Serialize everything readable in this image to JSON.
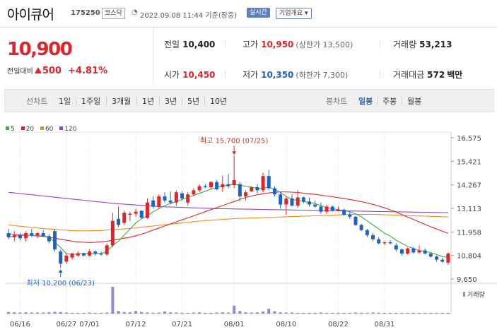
{
  "header": {
    "stock_name": "아이큐어",
    "stock_code": "175250",
    "market_tag": "코스닥",
    "datetime": "2022.09.08 11:44 기준(장중)",
    "realtime_button": "실시간",
    "corp_info_button": "기업개요 ▾"
  },
  "quote": {
    "price": "10,900",
    "change_label": "전일대비",
    "change": "500",
    "change_pct": "+4.81%"
  },
  "stats": {
    "prev_close_label": "전일",
    "prev_close": "10,400",
    "high_label": "고가",
    "high": "10,950",
    "upper_limit": "(상한가 13,500)",
    "volume_label": "거래량",
    "volume": "53,213",
    "open_label": "시가",
    "open": "10,450",
    "low_label": "저가",
    "low": "10,350",
    "lower_limit": "(하한가 7,300)",
    "amount_label": "거래대금",
    "amount": "572",
    "amount_unit": "백만"
  },
  "period_bar": {
    "line_chart_label": "선차트",
    "line_periods": [
      "1일",
      "1주일",
      "3개월",
      "1년",
      "3년",
      "5년",
      "10년"
    ],
    "candle_chart_label": "봉차트",
    "candle_periods": [
      "일봉",
      "주봉",
      "월봉"
    ],
    "selected_candle": "일봉"
  },
  "colors": {
    "up": "#e0242b",
    "down": "#1d63c6",
    "ma5": "#3cb043",
    "ma20": "#e0242b",
    "ma60": "#f08c1e",
    "ma120": "#8e44cf",
    "volume": "#9b86d4"
  },
  "chart_data": {
    "type": "candlestick",
    "x_tick_labels": [
      "06/16",
      "06/27",
      "07/01",
      "07/12",
      "07/21",
      "08/01",
      "08/10",
      "08/22",
      "08/31"
    ],
    "y_tick_labels": [
      "16,575",
      "15,421",
      "14,267",
      "13,113",
      "11,958",
      "10,804",
      "9,650"
    ],
    "ylim": [
      9650,
      16575
    ],
    "legend": [
      "5",
      "20",
      "60",
      "120"
    ],
    "high_annotation": "최고 15,700 (07/25)",
    "low_annotation": "최저 10,200 (06/23)",
    "volume_label": "거래량",
    "candles": [
      {
        "o": 11900,
        "h": 12100,
        "l": 11600,
        "c": 11700
      },
      {
        "o": 11700,
        "h": 12000,
        "l": 11500,
        "c": 11800
      },
      {
        "o": 11800,
        "h": 11900,
        "l": 11550,
        "c": 11650
      },
      {
        "o": 11650,
        "h": 12000,
        "l": 11500,
        "c": 11900
      },
      {
        "o": 11900,
        "h": 12100,
        "l": 11700,
        "c": 11800
      },
      {
        "o": 11800,
        "h": 11950,
        "l": 11650,
        "c": 11900
      },
      {
        "o": 11900,
        "h": 12050,
        "l": 11700,
        "c": 11750
      },
      {
        "o": 11750,
        "h": 11850,
        "l": 11400,
        "c": 11500
      },
      {
        "o": 12000,
        "h": 12100,
        "l": 11000,
        "c": 11100
      },
      {
        "o": 11000,
        "h": 11100,
        "l": 10200,
        "c": 10400
      },
      {
        "o": 10500,
        "h": 10900,
        "l": 10400,
        "c": 10800
      },
      {
        "o": 10700,
        "h": 10950,
        "l": 10600,
        "c": 10900
      },
      {
        "o": 10800,
        "h": 11000,
        "l": 10750,
        "c": 10900
      },
      {
        "o": 10900,
        "h": 10950,
        "l": 10750,
        "c": 10800
      },
      {
        "o": 10800,
        "h": 11100,
        "l": 10750,
        "c": 11000
      },
      {
        "o": 11000,
        "h": 11050,
        "l": 10800,
        "c": 10900
      },
      {
        "o": 10900,
        "h": 11000,
        "l": 10800,
        "c": 10850
      },
      {
        "o": 10850,
        "h": 11400,
        "l": 10800,
        "c": 11300
      },
      {
        "o": 11300,
        "h": 12900,
        "l": 11200,
        "c": 12500
      },
      {
        "o": 12600,
        "h": 13200,
        "l": 12200,
        "c": 12300
      },
      {
        "o": 12400,
        "h": 13000,
        "l": 12300,
        "c": 12900
      },
      {
        "o": 12800,
        "h": 12950,
        "l": 12500,
        "c": 12850
      },
      {
        "o": 12850,
        "h": 13100,
        "l": 12700,
        "c": 12950
      },
      {
        "o": 13000,
        "h": 13000,
        "l": 12600,
        "c": 12650
      },
      {
        "o": 12650,
        "h": 13600,
        "l": 12600,
        "c": 13400
      },
      {
        "o": 13500,
        "h": 13700,
        "l": 13100,
        "c": 13200
      },
      {
        "o": 13200,
        "h": 13800,
        "l": 13100,
        "c": 13700
      },
      {
        "o": 13700,
        "h": 13900,
        "l": 13400,
        "c": 13500
      },
      {
        "o": 13500,
        "h": 13950,
        "l": 13300,
        "c": 13400
      },
      {
        "o": 13400,
        "h": 14000,
        "l": 13250,
        "c": 13900
      },
      {
        "o": 13850,
        "h": 13950,
        "l": 13500,
        "c": 13600
      },
      {
        "o": 13400,
        "h": 13900,
        "l": 13250,
        "c": 13800
      },
      {
        "o": 13800,
        "h": 14100,
        "l": 13700,
        "c": 14000
      },
      {
        "o": 14000,
        "h": 14300,
        "l": 13900,
        "c": 14200
      },
      {
        "o": 14200,
        "h": 14300,
        "l": 14100,
        "c": 14150
      },
      {
        "o": 14150,
        "h": 14450,
        "l": 14050,
        "c": 14400
      },
      {
        "o": 14400,
        "h": 14500,
        "l": 14000,
        "c": 14050
      },
      {
        "o": 14150,
        "h": 14700,
        "l": 13900,
        "c": 14300
      },
      {
        "o": 14300,
        "h": 14800,
        "l": 14100,
        "c": 14200
      },
      {
        "o": 14250,
        "h": 15700,
        "l": 14100,
        "c": 14500
      },
      {
        "o": 14300,
        "h": 14400,
        "l": 13500,
        "c": 13700
      },
      {
        "o": 13700,
        "h": 14000,
        "l": 13500,
        "c": 13900
      },
      {
        "o": 13950,
        "h": 14200,
        "l": 13900,
        "c": 14150
      },
      {
        "o": 14150,
        "h": 14300,
        "l": 13850,
        "c": 14000
      },
      {
        "o": 14000,
        "h": 14850,
        "l": 13900,
        "c": 14700
      },
      {
        "o": 14700,
        "h": 15000,
        "l": 14000,
        "c": 14100
      },
      {
        "o": 14100,
        "h": 14200,
        "l": 13700,
        "c": 13800
      },
      {
        "o": 13800,
        "h": 13900,
        "l": 13100,
        "c": 13300
      },
      {
        "o": 13300,
        "h": 13700,
        "l": 12800,
        "c": 13600
      },
      {
        "o": 13600,
        "h": 13800,
        "l": 13200,
        "c": 13250
      },
      {
        "o": 13250,
        "h": 14000,
        "l": 13150,
        "c": 13650
      },
      {
        "o": 13650,
        "h": 13700,
        "l": 13350,
        "c": 13450
      },
      {
        "o": 13450,
        "h": 13650,
        "l": 13200,
        "c": 13300
      },
      {
        "o": 13300,
        "h": 13500,
        "l": 13150,
        "c": 13200
      },
      {
        "o": 13200,
        "h": 13400,
        "l": 12850,
        "c": 12950
      },
      {
        "o": 12950,
        "h": 13300,
        "l": 12850,
        "c": 13200
      },
      {
        "o": 13200,
        "h": 13250,
        "l": 12950,
        "c": 13000
      },
      {
        "o": 13000,
        "h": 13200,
        "l": 12950,
        "c": 13050
      },
      {
        "o": 13050,
        "h": 13100,
        "l": 12750,
        "c": 12800
      },
      {
        "o": 12800,
        "h": 12950,
        "l": 12600,
        "c": 12700
      },
      {
        "o": 12700,
        "h": 12750,
        "l": 12250,
        "c": 12300
      },
      {
        "o": 12300,
        "h": 12350,
        "l": 12000,
        "c": 12050
      },
      {
        "o": 12050,
        "h": 12100,
        "l": 11700,
        "c": 11800
      },
      {
        "o": 11800,
        "h": 11900,
        "l": 11500,
        "c": 11600
      },
      {
        "o": 11600,
        "h": 11700,
        "l": 11350,
        "c": 11400
      },
      {
        "o": 11400,
        "h": 11500,
        "l": 11300,
        "c": 11450
      },
      {
        "o": 11450,
        "h": 11550,
        "l": 11350,
        "c": 11400
      },
      {
        "o": 11300,
        "h": 11400,
        "l": 11000,
        "c": 11100
      },
      {
        "o": 11100,
        "h": 11150,
        "l": 10800,
        "c": 10900
      },
      {
        "o": 10900,
        "h": 11200,
        "l": 10850,
        "c": 11150
      },
      {
        "o": 11150,
        "h": 11200,
        "l": 10900,
        "c": 10950
      },
      {
        "o": 10950,
        "h": 11300,
        "l": 10900,
        "c": 11050
      },
      {
        "o": 11050,
        "h": 11150,
        "l": 10850,
        "c": 10900
      },
      {
        "o": 10900,
        "h": 10950,
        "l": 10700,
        "c": 10750
      },
      {
        "o": 10750,
        "h": 10800,
        "l": 10500,
        "c": 10600
      },
      {
        "o": 10600,
        "h": 10700,
        "l": 10450,
        "c": 10500
      },
      {
        "o": 10450,
        "h": 10950,
        "l": 10350,
        "c": 10900
      }
    ],
    "volumes": [
      6,
      5,
      4,
      5,
      4,
      4,
      4,
      5,
      7,
      6,
      4,
      3,
      3,
      3,
      4,
      3,
      3,
      4,
      100,
      10,
      6,
      5,
      10,
      6,
      4,
      3,
      4,
      8,
      5,
      4,
      3,
      3,
      4,
      5,
      3,
      3,
      4,
      5,
      4,
      30,
      10,
      5,
      4,
      5,
      8,
      18,
      9,
      5,
      4,
      4,
      3,
      3,
      3,
      3,
      4,
      3,
      3,
      3,
      3,
      3,
      4,
      3,
      3,
      4,
      3,
      3,
      3,
      3,
      3,
      3,
      3,
      3,
      3,
      3,
      3,
      3,
      3
    ],
    "ma5": [
      11700,
      11750,
      11780,
      11790,
      11800,
      11780,
      11760,
      11710,
      11450,
      11200,
      10900,
      10850,
      10900,
      10900,
      10900,
      10900,
      10900,
      11000,
      11300,
      11500,
      11800,
      12100,
      12400,
      12600,
      12750,
      12950,
      13100,
      13250,
      13350,
      13450,
      13550,
      13650,
      13750,
      13850,
      13950,
      14050,
      14150,
      14200,
      14250,
      14300,
      14250,
      14200,
      14150,
      14100,
      14100,
      14150,
      14050,
      13900,
      13700,
      13550,
      13500,
      13450,
      13400,
      13350,
      13250,
      13150,
      13100,
      13050,
      13000,
      12950,
      12850,
      12700,
      12500,
      12300,
      12100,
      11900,
      11750,
      11550,
      11400,
      11250,
      11150,
      11050,
      11000,
      10950,
      10850,
      10750,
      10700
    ],
    "ma20": [
      11850,
      11830,
      11810,
      11800,
      11780,
      11760,
      11740,
      11700,
      11650,
      11600,
      11550,
      11500,
      11470,
      11450,
      11440,
      11450,
      11470,
      11500,
      11550,
      11600,
      11650,
      11700,
      11770,
      11850,
      11950,
      12050,
      12150,
      12250,
      12350,
      12450,
      12550,
      12650,
      12750,
      12850,
      12950,
      13050,
      13150,
      13250,
      13350,
      13450,
      13550,
      13650,
      13720,
      13780,
      13830,
      13870,
      13900,
      13920,
      13920,
      13910,
      13890,
      13860,
      13830,
      13800,
      13760,
      13720,
      13680,
      13640,
      13600,
      13550,
      13500,
      13440,
      13380,
      13310,
      13230,
      13140,
      13040,
      12930,
      12810,
      12690,
      12570,
      12450,
      12330,
      12210,
      12100,
      11990,
      11890
    ],
    "ma60": [
      12300,
      12270,
      12240,
      12210,
      12180,
      12150,
      12120,
      12100,
      12080,
      12060,
      12040,
      12020,
      12010,
      12010,
      12010,
      12020,
      12030,
      12050,
      12070,
      12090,
      12110,
      12130,
      12160,
      12190,
      12220,
      12250,
      12280,
      12310,
      12340,
      12370,
      12400,
      12430,
      12460,
      12490,
      12510,
      12530,
      12550,
      12570,
      12590,
      12610,
      12620,
      12630,
      12640,
      12650,
      12660,
      12670,
      12680,
      12690,
      12700,
      12710,
      12720,
      12730,
      12740,
      12750,
      12760,
      12770,
      12780,
      12790,
      12800,
      12810,
      12820,
      12820,
      12820,
      12820,
      12810,
      12800,
      12790,
      12780,
      12770,
      12760,
      12750,
      12740,
      12730,
      12720,
      12710,
      12700,
      12690
    ],
    "ma120": [
      13900,
      13870,
      13840,
      13810,
      13780,
      13750,
      13720,
      13690,
      13660,
      13630,
      13600,
      13570,
      13540,
      13510,
      13480,
      13450,
      13420,
      13390,
      13360,
      13340,
      13320,
      13300,
      13280,
      13260,
      13240,
      13220,
      13200,
      13190,
      13180,
      13170,
      13160,
      13150,
      13140,
      13130,
      13120,
      13110,
      13100,
      13095,
      13090,
      13085,
      13080,
      13075,
      13070,
      13065,
      13060,
      13055,
      13050,
      13045,
      13040,
      13035,
      13030,
      13025,
      13020,
      13015,
      13010,
      13005,
      13000,
      12995,
      12990,
      12985,
      12980,
      12975,
      12970,
      12965,
      12960,
      12955,
      12950,
      12945,
      12940,
      12935,
      12930,
      12925,
      12920,
      12915,
      12910,
      12905,
      12900
    ]
  }
}
